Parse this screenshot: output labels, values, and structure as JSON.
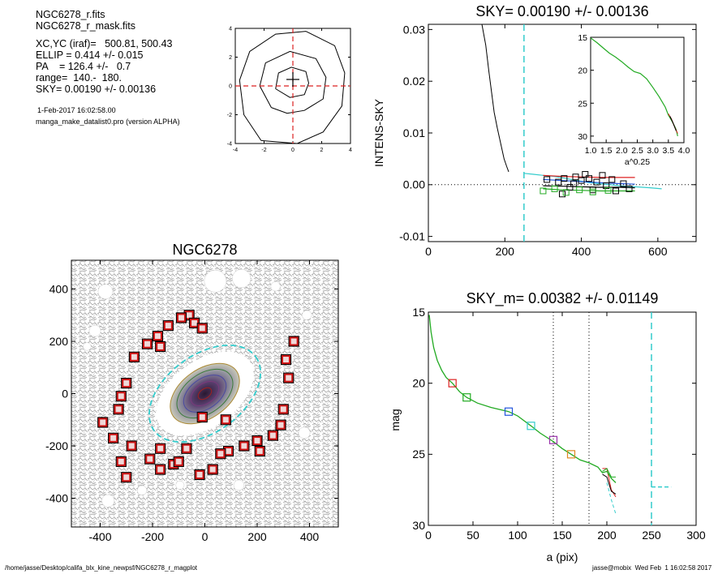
{
  "header_info": {
    "file_line1": "NGC6278_r.fits",
    "file_line2": "NGC6278_r_mask.fits",
    "xcyc": "XC,YC (iraf)=   500.81, 500.43",
    "ellip": "ELLIP = 0.414 +/- 0.015",
    "pa": "PA    = 126.4 +/-   0.7",
    "range": "range=  140.-  180.",
    "sky": "SKY= 0.00190 +/- 0.00136",
    "date": "1-Feb-2017 16:02:58.00",
    "program": "manga_make_datalist0.pro (version ALPHA)"
  },
  "footer": {
    "path": "/home/jasse/Desktop/califa_blx_kine_newpsf/NGC6278_r_magplot",
    "user_date": "jasse@mobix  Wed Feb  1 16:02:58 2017"
  },
  "colors": {
    "red": "#dd2222",
    "green": "#22aa22",
    "blue": "#2255dd",
    "cyan": "#33cccc",
    "purple": "#9933aa",
    "orange": "#dd8822",
    "black": "#000000",
    "galaxy": "#5a4070"
  },
  "chart_data": [
    {
      "id": "center_contour",
      "type": "contour",
      "xlim": [
        -4,
        4
      ],
      "ylim": [
        -4,
        4
      ],
      "xticks": [
        "-4",
        "-2",
        "0",
        "2",
        "4"
      ],
      "yticks": [
        "-4",
        "-2",
        "0",
        "2",
        "4"
      ],
      "contours": [
        [
          [
            -2.2,
            -3.8
          ],
          [
            -3.4,
            -2.0
          ],
          [
            -3.7,
            0.4
          ],
          [
            -3.0,
            2.4
          ],
          [
            -1.2,
            3.6
          ],
          [
            0.9,
            3.8
          ],
          [
            2.9,
            2.8
          ],
          [
            3.6,
            0.9
          ],
          [
            3.4,
            -1.4
          ],
          [
            2.1,
            -3.2
          ],
          [
            0.3,
            -4.0
          ]
        ],
        [
          [
            -1.5,
            -1.5
          ],
          [
            -2.3,
            0
          ],
          [
            -1.9,
            1.6
          ],
          [
            -0.2,
            2.4
          ],
          [
            1.6,
            1.9
          ],
          [
            2.3,
            0.6
          ],
          [
            2.1,
            -0.9
          ],
          [
            0.8,
            -1.7
          ],
          [
            -0.4,
            -1.9
          ]
        ],
        [
          [
            -1.2,
            -0.2
          ],
          [
            -1.0,
            0.9
          ],
          [
            -0.1,
            1.3
          ],
          [
            0.9,
            1.0
          ],
          [
            1.1,
            0.2
          ],
          [
            0.8,
            -0.6
          ],
          [
            -0.2,
            -0.8
          ]
        ]
      ],
      "crosshair": [
        0,
        0
      ]
    },
    {
      "id": "sky_profile",
      "type": "line",
      "title": "SKY= 0.00190 +/- 0.00136",
      "ylabel": "INTENS-SKY",
      "xlim": [
        0,
        700
      ],
      "ylim": [
        -0.011,
        0.031
      ],
      "xticks": [
        "0",
        "200",
        "400",
        "600"
      ],
      "yticks": [
        "-0.01",
        "0.00",
        "0.01",
        "0.02",
        "0.03"
      ],
      "cutoff_x": 250,
      "profile": [
        [
          140,
          0.031
        ],
        [
          150,
          0.027
        ],
        [
          158,
          0.022
        ],
        [
          165,
          0.018
        ],
        [
          172,
          0.014
        ],
        [
          180,
          0.011
        ],
        [
          186,
          0.009
        ],
        [
          192,
          0.007
        ],
        [
          198,
          0.005
        ],
        [
          205,
          0.0035
        ],
        [
          210,
          0.0025
        ]
      ],
      "series": [
        {
          "color_key": "cyan",
          "points": [
            [
              250,
              0.0022
            ],
            [
              275,
              0.002
            ],
            [
              300,
              0.0018
            ],
            [
              330,
              0.0016
            ],
            [
              360,
              0.0012
            ],
            [
              390,
              0.0008
            ],
            [
              420,
              0.0004
            ],
            [
              460,
              0.0001
            ],
            [
              500,
              -0.0002
            ],
            [
              540,
              -0.0004
            ],
            [
              580,
              -0.0006
            ],
            [
              610,
              -0.0008
            ]
          ]
        },
        {
          "color_key": "red",
          "points": [
            [
              300,
              0.0018
            ],
            [
              350,
              0.0016
            ],
            [
              400,
              0.0015
            ],
            [
              450,
              0.0014
            ],
            [
              500,
              0.0014
            ],
            [
              540,
              0.0014
            ]
          ]
        },
        {
          "color_key": "blue",
          "points": [
            [
              300,
              0.001
            ],
            [
              350,
              0.0008
            ],
            [
              400,
              0.0006
            ],
            [
              450,
              0.0004
            ],
            [
              500,
              0.0002
            ],
            [
              540,
              0.0001
            ]
          ]
        },
        {
          "color_key": "black",
          "points": [
            [
              300,
              -0.0002
            ],
            [
              350,
              -0.0003
            ],
            [
              400,
              -0.0004
            ],
            [
              450,
              -0.0005
            ],
            [
              500,
              -0.0005
            ],
            [
              540,
              -0.0006
            ]
          ]
        },
        {
          "color_key": "green",
          "points": [
            [
              300,
              -0.0008
            ],
            [
              350,
              -0.001
            ],
            [
              400,
              -0.0011
            ],
            [
              450,
              -0.0012
            ],
            [
              500,
              -0.0012
            ],
            [
              540,
              -0.0012
            ]
          ]
        }
      ],
      "scatter": {
        "black": [
          [
            310,
            0.001
          ],
          [
            340,
            0.0005
          ],
          [
            355,
            0.0012
          ],
          [
            370,
            -0.0005
          ],
          [
            385,
            0.0015
          ],
          [
            400,
            0.0008
          ],
          [
            410,
            0.002
          ],
          [
            430,
            -0.001
          ],
          [
            440,
            0.0005
          ],
          [
            455,
            0.0018
          ],
          [
            465,
            -0.0002
          ],
          [
            480,
            0.001
          ],
          [
            490,
            -0.0012
          ],
          [
            510,
            0.0002
          ],
          [
            525,
            -0.0008
          ],
          [
            350,
            -0.0018
          ],
          [
            380,
            0.0002
          ],
          [
            420,
            0.0012
          ]
        ],
        "green": [
          [
            300,
            -0.0012
          ],
          [
            330,
            -0.0008
          ],
          [
            360,
            -0.0015
          ],
          [
            395,
            -0.001
          ],
          [
            430,
            -0.0014
          ],
          [
            470,
            -0.0011
          ]
        ]
      },
      "inset": {
        "xlabel": "a^0.25",
        "xlim": [
          1.0,
          4.0
        ],
        "ylim": [
          15,
          31
        ],
        "xticks": [
          "1.0",
          "1.5",
          "2.0",
          "2.5",
          "3.0",
          "3.5",
          "4.0"
        ],
        "yticks": [
          "15",
          "20",
          "25",
          "30"
        ],
        "profile": [
          [
            1.0,
            15.1
          ],
          [
            1.2,
            15.8
          ],
          [
            1.4,
            16.6
          ],
          [
            1.6,
            17.4
          ],
          [
            1.8,
            18.0
          ],
          [
            2.0,
            18.7
          ],
          [
            2.2,
            19.5
          ],
          [
            2.4,
            20.2
          ],
          [
            2.6,
            20.5
          ],
          [
            2.8,
            21.3
          ],
          [
            3.0,
            22.6
          ],
          [
            3.2,
            24.0
          ],
          [
            3.4,
            25.6
          ],
          [
            3.5,
            26.8
          ],
          [
            3.6,
            27.6
          ],
          [
            3.7,
            28.5
          ],
          [
            3.75,
            29.0
          ],
          [
            3.8,
            30.0
          ]
        ]
      }
    },
    {
      "id": "galaxy_map",
      "type": "image",
      "title": "NGC6278",
      "xlim": [
        -510,
        510
      ],
      "ylim": [
        -510,
        510
      ],
      "xticks": [
        "-400",
        "-200",
        "0",
        "200",
        "400"
      ],
      "yticks": [
        "-400",
        "-200",
        "0",
        "200",
        "400"
      ],
      "ellipse": {
        "center": [
          0,
          0
        ],
        "semi_major": 240,
        "ellipticity": 0.414,
        "rotation_deg": 36
      },
      "mask_holes": [
        [
          40,
          430,
          42
        ],
        [
          140,
          440,
          35
        ],
        [
          270,
          410,
          18
        ],
        [
          -380,
          390,
          28
        ],
        [
          -420,
          240,
          22
        ],
        [
          -370,
          -410,
          24
        ],
        [
          -240,
          -370,
          18
        ],
        [
          -95,
          -350,
          16
        ],
        [
          130,
          -350,
          20
        ],
        [
          380,
          -150,
          22
        ],
        [
          390,
          300,
          18
        ],
        [
          -450,
          180,
          15
        ],
        [
          190,
          -220,
          14
        ]
      ],
      "stars": [
        [
          -60,
          300
        ],
        [
          -140,
          260
        ],
        [
          -220,
          190
        ],
        [
          -270,
          140
        ],
        [
          -300,
          40
        ],
        [
          -320,
          -10
        ],
        [
          -390,
          -110
        ],
        [
          -350,
          -170
        ],
        [
          -280,
          -200
        ],
        [
          -320,
          -260
        ],
        [
          -300,
          -320
        ],
        [
          -210,
          -250
        ],
        [
          -170,
          -290
        ],
        [
          -120,
          -270
        ],
        [
          -100,
          -260
        ],
        [
          -20,
          -310
        ],
        [
          30,
          -290
        ],
        [
          90,
          -220
        ],
        [
          150,
          -200
        ],
        [
          200,
          -180
        ],
        [
          260,
          -160
        ],
        [
          300,
          -60
        ],
        [
          320,
          60
        ],
        [
          310,
          130
        ],
        [
          340,
          200
        ],
        [
          290,
          -120
        ],
        [
          -40,
          270
        ],
        [
          -90,
          290
        ],
        [
          -10,
          250
        ],
        [
          -180,
          220
        ],
        [
          -170,
          180
        ],
        [
          -330,
          -60
        ],
        [
          -170,
          -210
        ],
        [
          60,
          -230
        ],
        [
          -70,
          -210
        ],
        [
          210,
          -220
        ],
        [
          -10,
          -90
        ],
        [
          80,
          -100
        ]
      ]
    },
    {
      "id": "mag_profile",
      "type": "line",
      "title": "SKY_m=  0.00382 +/- 0.01149",
      "xlabel": "a (pix)",
      "ylabel": "mag",
      "xlim": [
        0,
        300
      ],
      "ylim": [
        15,
        30
      ],
      "xticks": [
        "0",
        "50",
        "100",
        "150",
        "200",
        "250",
        "300"
      ],
      "yticks": [
        "15",
        "20",
        "25",
        "30"
      ],
      "range_lines_x": [
        140,
        180
      ],
      "cutoff_x": 250,
      "sky_level": 27.3,
      "profile": [
        [
          1,
          15.2
        ],
        [
          3,
          16.4
        ],
        [
          6,
          17.5
        ],
        [
          10,
          18.4
        ],
        [
          15,
          19.1
        ],
        [
          20,
          19.6
        ],
        [
          27,
          20.0
        ],
        [
          35,
          20.6
        ],
        [
          43,
          21.0
        ],
        [
          55,
          21.4
        ],
        [
          70,
          21.7
        ],
        [
          90,
          22.0
        ],
        [
          100,
          22.3
        ],
        [
          115,
          23.0
        ],
        [
          125,
          23.5
        ],
        [
          140,
          24.1
        ],
        [
          150,
          24.6
        ],
        [
          160,
          25.0
        ],
        [
          170,
          25.4
        ],
        [
          180,
          25.6
        ],
        [
          190,
          25.9
        ],
        [
          195,
          26.3
        ],
        [
          200,
          26.2
        ],
        [
          205,
          26.7
        ],
        [
          210,
          27.0
        ]
      ],
      "tails": {
        "red": [
          [
            195,
            26.0
          ],
          [
            200,
            26.0
          ],
          [
            205,
            27.5
          ],
          [
            210,
            28.0
          ]
        ],
        "black": [
          [
            195,
            26.4
          ],
          [
            200,
            26.6
          ],
          [
            205,
            27.6
          ],
          [
            210,
            27.8
          ]
        ],
        "green": [
          [
            195,
            26.2
          ],
          [
            200,
            26.0
          ],
          [
            205,
            26.6
          ],
          [
            210,
            26.6
          ]
        ],
        "cyan": [
          [
            200,
            27.0
          ],
          [
            205,
            28.2
          ],
          [
            210,
            29.2
          ]
        ]
      },
      "markers": [
        {
          "x": 27,
          "y": 20.0,
          "color_key": "red"
        },
        {
          "x": 43,
          "y": 21.0,
          "color_key": "green"
        },
        {
          "x": 90,
          "y": 22.0,
          "color_key": "blue"
        },
        {
          "x": 115,
          "y": 23.0,
          "color_key": "cyan"
        },
        {
          "x": 140,
          "y": 24.0,
          "color_key": "purple"
        },
        {
          "x": 160,
          "y": 25.0,
          "color_key": "orange"
        }
      ]
    }
  ]
}
